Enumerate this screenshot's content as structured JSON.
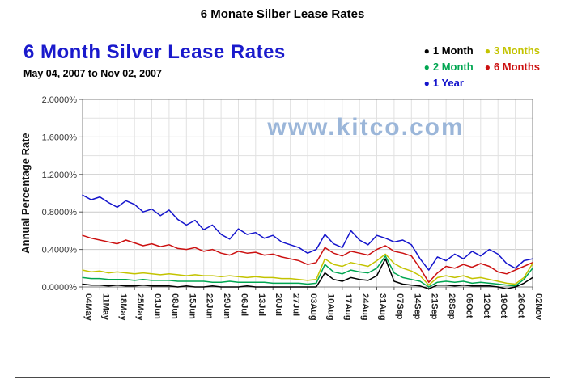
{
  "page": {
    "title": "6 Monate Silber Lease Rates"
  },
  "chart": {
    "title": "6 Month Silver Lease Rates",
    "subtitle": "May 04, 2007 to Nov 02, 2007",
    "watermark": "www.kitco.com",
    "watermark_color": "#9bb6d9",
    "title_color": "#1a1acc",
    "y_axis_label": "Annual Percentage Rate",
    "legend_order": [
      "1 Month",
      "3 Months",
      "2 Month",
      "6 Months",
      "1 Year"
    ]
  },
  "chart_data": {
    "type": "line",
    "title": "6 Month Silver Lease Rates",
    "subtitle": "May 04, 2007 to Nov 02, 2007",
    "xlabel": "",
    "ylabel": "Annual Percentage Rate",
    "units": "percent",
    "ylim": [
      0,
      2.0
    ],
    "ytick_step": 0.4,
    "minor_grid_step": 0.2,
    "grid": true,
    "legend_position": "top-right",
    "ytick_labels": [
      "0.0000%",
      "0.4000%",
      "0.8000%",
      "1.2000%",
      "1.6000%",
      "2.0000%"
    ],
    "x_tick_labels": [
      "04May",
      "11May",
      "18May",
      "25May",
      "01Jun",
      "08Jun",
      "15Jun",
      "22Jun",
      "29Jun",
      "06Jul",
      "13Jul",
      "20Jul",
      "27Jul",
      "03Aug",
      "10Aug",
      "17Aug",
      "24Aug",
      "31Aug",
      "07Sep",
      "14Sep",
      "21Sep",
      "28Sep",
      "05Oct",
      "12Oct",
      "19Oct",
      "26Oct",
      "02Nov"
    ],
    "points_per_week": 2,
    "series": [
      {
        "name": "1 Year",
        "color": "#1414cc",
        "values": [
          0.98,
          0.93,
          0.96,
          0.9,
          0.85,
          0.92,
          0.88,
          0.8,
          0.83,
          0.76,
          0.82,
          0.72,
          0.66,
          0.71,
          0.61,
          0.66,
          0.56,
          0.51,
          0.62,
          0.56,
          0.58,
          0.52,
          0.55,
          0.48,
          0.45,
          0.42,
          0.36,
          0.4,
          0.56,
          0.46,
          0.42,
          0.6,
          0.5,
          0.45,
          0.55,
          0.52,
          0.48,
          0.5,
          0.45,
          0.3,
          0.18,
          0.32,
          0.28,
          0.35,
          0.3,
          0.38,
          0.33,
          0.4,
          0.35,
          0.25,
          0.2,
          0.28,
          0.3
        ]
      },
      {
        "name": "6 Months",
        "color": "#cc1111",
        "values": [
          0.55,
          0.52,
          0.5,
          0.48,
          0.46,
          0.5,
          0.47,
          0.44,
          0.46,
          0.43,
          0.45,
          0.41,
          0.4,
          0.42,
          0.38,
          0.4,
          0.36,
          0.34,
          0.38,
          0.36,
          0.37,
          0.34,
          0.35,
          0.32,
          0.3,
          0.28,
          0.24,
          0.26,
          0.42,
          0.36,
          0.33,
          0.38,
          0.36,
          0.34,
          0.4,
          0.44,
          0.38,
          0.36,
          0.33,
          0.2,
          0.05,
          0.15,
          0.22,
          0.2,
          0.24,
          0.21,
          0.25,
          0.22,
          0.16,
          0.14,
          0.18,
          0.22,
          0.26
        ]
      },
      {
        "name": "3 Months",
        "color": "#c3c300",
        "values": [
          0.18,
          0.16,
          0.17,
          0.15,
          0.16,
          0.15,
          0.14,
          0.15,
          0.14,
          0.13,
          0.14,
          0.13,
          0.12,
          0.13,
          0.12,
          0.12,
          0.11,
          0.12,
          0.11,
          0.1,
          0.11,
          0.1,
          0.1,
          0.09,
          0.09,
          0.08,
          0.07,
          0.08,
          0.3,
          0.24,
          0.22,
          0.26,
          0.24,
          0.22,
          0.28,
          0.35,
          0.25,
          0.2,
          0.17,
          0.12,
          0.02,
          0.1,
          0.12,
          0.1,
          0.12,
          0.09,
          0.1,
          0.08,
          0.06,
          0.04,
          0.03,
          0.1,
          0.25
        ]
      },
      {
        "name": "2 Month",
        "color": "#00a651",
        "values": [
          0.1,
          0.09,
          0.09,
          0.08,
          0.08,
          0.08,
          0.07,
          0.08,
          0.07,
          0.07,
          0.07,
          0.06,
          0.06,
          0.06,
          0.06,
          0.05,
          0.05,
          0.06,
          0.05,
          0.05,
          0.05,
          0.05,
          0.04,
          0.04,
          0.04,
          0.04,
          0.03,
          0.04,
          0.24,
          0.16,
          0.14,
          0.18,
          0.16,
          0.15,
          0.2,
          0.33,
          0.15,
          0.1,
          0.08,
          0.06,
          0.0,
          0.05,
          0.06,
          0.05,
          0.06,
          0.04,
          0.05,
          0.04,
          0.03,
          0.02,
          0.01,
          0.08,
          0.2
        ]
      },
      {
        "name": "1 Month",
        "color": "#000000",
        "values": [
          0.03,
          0.02,
          0.02,
          0.01,
          0.02,
          0.01,
          0.01,
          0.02,
          0.01,
          0.01,
          0.01,
          0.0,
          0.01,
          0.0,
          0.0,
          0.01,
          0.0,
          0.0,
          0.0,
          0.01,
          0.0,
          0.0,
          0.0,
          0.0,
          0.0,
          0.0,
          0.0,
          0.0,
          0.15,
          0.08,
          0.06,
          0.1,
          0.08,
          0.07,
          0.12,
          0.3,
          0.06,
          0.03,
          0.02,
          0.01,
          -0.02,
          0.02,
          0.02,
          0.01,
          0.02,
          0.01,
          0.01,
          0.01,
          0.0,
          -0.02,
          0.0,
          0.04,
          0.1
        ]
      }
    ]
  }
}
